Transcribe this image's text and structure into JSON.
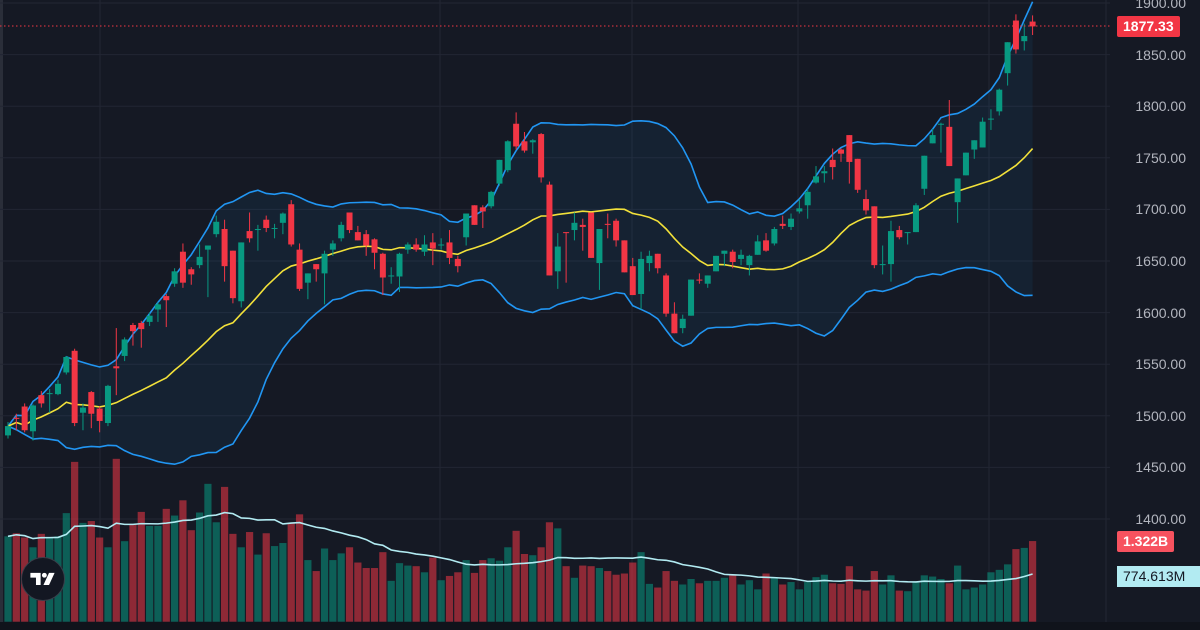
{
  "colors": {
    "up": "#089981",
    "down": "#F23645",
    "bands": "#2196F3",
    "basis": "#F2E13A",
    "vol_ma": "#B2EBF2",
    "background": "#151924"
  },
  "chart_data": {
    "type": "candlestick",
    "title": "",
    "ylim": [
      1378,
      1903
    ],
    "y_ticks": [
      "1900.00",
      "1850.00",
      "1800.00",
      "1750.00",
      "1700.00",
      "1650.00",
      "1600.00",
      "1550.00",
      "1500.00",
      "1450.00",
      "1400.00"
    ],
    "last_price": "1877.33",
    "last_volume": "1.322B",
    "volume_ma_value": "774.613M",
    "indicators": [
      "Bollinger Bands (20, 2)",
      "Volume MA (20)"
    ],
    "candles_ohlcv_volumeB": [
      [
        1481,
        1494,
        1478,
        1490,
        1.4
      ],
      [
        1498,
        1502,
        1486,
        1497,
        1.45
      ],
      [
        1509,
        1512,
        1484,
        1486,
        1.38
      ],
      [
        1485,
        1511,
        1476,
        1510,
        1.22
      ],
      [
        1520,
        1524,
        1508,
        1512,
        1.44
      ],
      [
        1521,
        1526,
        1503,
        1522,
        1.38
      ],
      [
        1521,
        1535,
        1520,
        1531,
        1.4
      ],
      [
        1542,
        1558,
        1540,
        1557,
        1.78
      ],
      [
        1563,
        1565,
        1490,
        1493,
        2.62
      ],
      [
        1503,
        1512,
        1486,
        1508,
        1.62
      ],
      [
        1523,
        1524,
        1488,
        1502,
        1.65
      ],
      [
        1507,
        1509,
        1484,
        1495,
        1.38
      ],
      [
        1493,
        1530,
        1490,
        1529,
        1.22
      ],
      [
        1548,
        1585,
        1520,
        1546,
        2.67
      ],
      [
        1558,
        1576,
        1553,
        1574,
        1.32
      ],
      [
        1588,
        1590,
        1568,
        1582,
        1.6
      ],
      [
        1590,
        1592,
        1566,
        1584,
        1.8
      ],
      [
        1591,
        1600,
        1587,
        1597,
        1.57
      ],
      [
        1603,
        1610,
        1591,
        1608,
        1.57
      ],
      [
        1616,
        1618,
        1586,
        1612,
        1.85
      ],
      [
        1628,
        1643,
        1625,
        1640,
        1.74
      ],
      [
        1659,
        1667,
        1624,
        1629,
        1.99
      ],
      [
        1642,
        1644,
        1627,
        1637,
        1.5
      ],
      [
        1646,
        1666,
        1643,
        1654,
        1.79
      ],
      [
        1661,
        1665,
        1615,
        1665,
        2.26
      ],
      [
        1676,
        1694,
        1673,
        1688,
        1.63
      ],
      [
        1681,
        1690,
        1630,
        1645,
        2.21
      ],
      [
        1660,
        1660,
        1609,
        1614,
        1.44
      ],
      [
        1611,
        1668,
        1605,
        1668,
        1.22
      ],
      [
        1679,
        1697,
        1668,
        1672,
        1.47
      ],
      [
        1680,
        1685,
        1660,
        1681,
        1.1
      ],
      [
        1690,
        1694,
        1678,
        1682,
        1.45
      ],
      [
        1682,
        1686,
        1672,
        1682,
        1.24
      ],
      [
        1687,
        1697,
        1676,
        1696,
        1.29
      ],
      [
        1705,
        1709,
        1664,
        1666,
        1.61
      ],
      [
        1661,
        1667,
        1621,
        1623,
        1.76
      ],
      [
        1629,
        1638,
        1613,
        1638,
        1.01
      ],
      [
        1647,
        1647,
        1630,
        1642,
        0.83
      ],
      [
        1638,
        1660,
        1608,
        1657,
        1.2
      ],
      [
        1661,
        1670,
        1655,
        1667,
        1.01
      ],
      [
        1672,
        1688,
        1669,
        1685,
        1.12
      ],
      [
        1697,
        1697,
        1677,
        1680,
        1.22
      ],
      [
        1678,
        1684,
        1670,
        1670,
        0.97
      ],
      [
        1676,
        1680,
        1655,
        1665,
        0.88
      ],
      [
        1671,
        1672,
        1642,
        1658,
        0.88
      ],
      [
        1657,
        1658,
        1617,
        1634,
        1.14
      ],
      [
        1635,
        1644,
        1628,
        1636,
        0.67
      ],
      [
        1635,
        1658,
        1620,
        1657,
        0.96
      ],
      [
        1661,
        1668,
        1657,
        1666,
        0.92
      ],
      [
        1666,
        1672,
        1659,
        1661,
        0.91
      ],
      [
        1659,
        1675,
        1655,
        1666,
        0.81
      ],
      [
        1668,
        1677,
        1646,
        1662,
        1.05
      ],
      [
        1665,
        1672,
        1661,
        1666,
        0.68
      ],
      [
        1668,
        1680,
        1647,
        1653,
        0.75
      ],
      [
        1652,
        1655,
        1639,
        1645,
        0.81
      ],
      [
        1673,
        1696,
        1665,
        1696,
        1.01
      ],
      [
        1704,
        1704,
        1685,
        1685,
        0.8
      ],
      [
        1702,
        1704,
        1682,
        1698,
        1.01
      ],
      [
        1703,
        1718,
        1701,
        1717,
        1.04
      ],
      [
        1725,
        1748,
        1723,
        1748,
        1.0
      ],
      [
        1738,
        1767,
        1736,
        1766,
        1.22
      ],
      [
        1783,
        1794,
        1758,
        1761,
        1.49
      ],
      [
        1766,
        1775,
        1755,
        1757,
        1.11
      ],
      [
        1765,
        1768,
        1754,
        1767,
        1.09
      ],
      [
        1773,
        1774,
        1726,
        1731,
        1.22
      ],
      [
        1724,
        1727,
        1636,
        1636,
        1.63
      ],
      [
        1640,
        1677,
        1623,
        1664,
        1.53
      ],
      [
        1678,
        1678,
        1629,
        1677,
        0.91
      ],
      [
        1680,
        1697,
        1670,
        1687,
        0.72
      ],
      [
        1685,
        1691,
        1660,
        1683,
        0.92
      ],
      [
        1697,
        1697,
        1653,
        1653,
        0.91
      ],
      [
        1648,
        1681,
        1622,
        1681,
        0.88
      ],
      [
        1686,
        1696,
        1672,
        1685,
        0.83
      ],
      [
        1689,
        1691,
        1664,
        1670,
        0.77
      ],
      [
        1670,
        1670,
        1639,
        1639,
        0.79
      ],
      [
        1645,
        1653,
        1617,
        1617,
        0.97
      ],
      [
        1618,
        1659,
        1603,
        1652,
        1.14
      ],
      [
        1648,
        1660,
        1640,
        1655,
        0.62
      ],
      [
        1657,
        1657,
        1638,
        1643,
        0.56
      ],
      [
        1636,
        1638,
        1596,
        1599,
        0.83
      ],
      [
        1599,
        1610,
        1580,
        1580,
        0.67
      ],
      [
        1585,
        1598,
        1580,
        1594,
        0.61
      ],
      [
        1597,
        1632,
        1597,
        1632,
        0.7
      ],
      [
        1632,
        1638,
        1628,
        1631,
        0.63
      ],
      [
        1628,
        1636,
        1624,
        1636,
        0.67
      ],
      [
        1640,
        1655,
        1640,
        1655,
        0.67
      ],
      [
        1657,
        1660,
        1645,
        1660,
        0.72
      ],
      [
        1659,
        1661,
        1643,
        1649,
        0.77
      ],
      [
        1652,
        1661,
        1646,
        1656,
        0.61
      ],
      [
        1646,
        1656,
        1636,
        1655,
        0.68
      ],
      [
        1656,
        1675,
        1656,
        1669,
        0.53
      ],
      [
        1670,
        1677,
        1659,
        1660,
        0.79
      ],
      [
        1667,
        1683,
        1665,
        1681,
        0.72
      ],
      [
        1686,
        1694,
        1681,
        1684,
        0.61
      ],
      [
        1683,
        1696,
        1680,
        1691,
        0.65
      ],
      [
        1698,
        1710,
        1696,
        1701,
        0.53
      ],
      [
        1704,
        1720,
        1691,
        1717,
        0.65
      ],
      [
        1726,
        1742,
        1725,
        1732,
        0.73
      ],
      [
        1735,
        1742,
        1726,
        1737,
        0.77
      ],
      [
        1748,
        1759,
        1729,
        1741,
        0.63
      ],
      [
        1758,
        1759,
        1746,
        1754,
        0.62
      ],
      [
        1772,
        1772,
        1725,
        1746,
        0.91
      ],
      [
        1749,
        1749,
        1716,
        1719,
        0.53
      ],
      [
        1710,
        1719,
        1695,
        1699,
        0.51
      ],
      [
        1703,
        1703,
        1643,
        1646,
        0.83
      ],
      [
        1646,
        1665,
        1637,
        1647,
        0.61
      ],
      [
        1647,
        1689,
        1630,
        1679,
        0.76
      ],
      [
        1680,
        1684,
        1671,
        1673,
        0.51
      ],
      [
        1677,
        1678,
        1666,
        1678,
        0.5
      ],
      [
        1678,
        1706,
        1678,
        1704,
        0.65
      ],
      [
        1720,
        1752,
        1714,
        1752,
        0.76
      ],
      [
        1764,
        1778,
        1764,
        1772,
        0.74
      ],
      [
        1782,
        1784,
        1755,
        1783,
        0.7
      ],
      [
        1780,
        1806,
        1742,
        1742,
        0.63
      ],
      [
        1707,
        1730,
        1687,
        1730,
        0.92
      ],
      [
        1733,
        1755,
        1733,
        1755,
        0.53
      ],
      [
        1758,
        1767,
        1749,
        1767,
        0.56
      ],
      [
        1760,
        1789,
        1760,
        1785,
        0.61
      ],
      [
        1787,
        1797,
        1777,
        1788,
        0.81
      ],
      [
        1795,
        1817,
        1791,
        1816,
        0.85
      ],
      [
        1832,
        1862,
        1820,
        1862,
        0.94
      ],
      [
        1883,
        1889,
        1851,
        1855,
        1.19
      ],
      [
        1863,
        1880,
        1854,
        1868,
        1.21
      ],
      [
        1882,
        1888,
        1869,
        1877.33,
        1.322
      ]
    ]
  }
}
